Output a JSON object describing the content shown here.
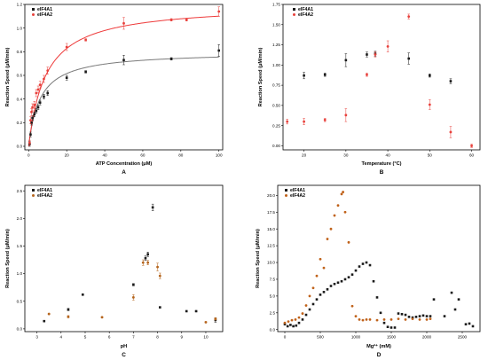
{
  "colors": {
    "A1": "#1a1a1a",
    "A2": "#e8413c",
    "curveA1": "#7a7a7a",
    "curveA2": "#ee3b3b",
    "A2_panelC": "#b5651d",
    "A2_panelD": "#c0621a"
  },
  "legend": {
    "series1": "eIF4A1",
    "series2": "eIF4A2"
  },
  "chart_data": [
    {
      "type": "scatter",
      "panel_label": "A",
      "xlabel": "ATP Concentration (μM)",
      "ylabel": "Reaction Speed (μM/min)",
      "xlim": [
        -2,
        102
      ],
      "ylim": [
        -0.03,
        1.2
      ],
      "xticks": [
        0,
        20,
        40,
        60,
        80,
        100
      ],
      "yticks": [
        0.0,
        0.2,
        0.4,
        0.6,
        0.8,
        1.0,
        1.2
      ],
      "ytick_labels": [
        "0.0",
        "0.2",
        "0.4",
        "0.6",
        "0.8",
        "1.0",
        "1.2"
      ],
      "legend_position": "top-left",
      "fits": [
        {
          "series": "eIF4A1",
          "type": "michaelis-menten",
          "vmax": 0.8,
          "km": 6
        },
        {
          "series": "eIF4A2",
          "type": "michaelis-menten",
          "vmax": 1.2,
          "km": 9
        }
      ],
      "series": [
        {
          "name": "eIF4A1",
          "color": "#1a1a1a",
          "marker": "square",
          "points": [
            [
              0.5,
              0.02
            ],
            [
              1,
              0.1
            ],
            [
              1.5,
              0.2
            ],
            [
              2,
              0.24
            ],
            [
              3,
              0.27
            ],
            [
              4,
              0.3
            ],
            [
              5,
              0.33
            ],
            [
              6,
              0.37
            ],
            [
              8,
              0.42
            ],
            [
              10,
              0.45
            ],
            [
              20,
              0.58
            ],
            [
              30,
              0.63
            ],
            [
              50,
              0.73
            ],
            [
              75,
              0.74
            ],
            [
              100,
              0.81
            ]
          ],
          "errors": [
            0.02,
            0.02,
            0.02,
            0.02,
            0.02,
            0.02,
            0.02,
            0.02,
            0.02,
            0.02,
            0.02,
            0.01,
            0.04,
            0.01,
            0.05
          ]
        },
        {
          "name": "eIF4A2",
          "color": "#e8413c",
          "marker": "circle",
          "points": [
            [
              0.5,
              0.03
            ],
            [
              1,
              0.22
            ],
            [
              1.5,
              0.29
            ],
            [
              2,
              0.33
            ],
            [
              3,
              0.35
            ],
            [
              4,
              0.45
            ],
            [
              5,
              0.48
            ],
            [
              6,
              0.52
            ],
            [
              8,
              0.57
            ],
            [
              10,
              0.64
            ],
            [
              20,
              0.84
            ],
            [
              30,
              0.9
            ],
            [
              50,
              1.04
            ],
            [
              75,
              1.07
            ],
            [
              83,
              1.07
            ],
            [
              100,
              1.14
            ]
          ],
          "errors": [
            0.02,
            0.03,
            0.03,
            0.03,
            0.03,
            0.03,
            0.03,
            0.03,
            0.03,
            0.03,
            0.03,
            0.01,
            0.05,
            0.01,
            0.01,
            0.04
          ]
        }
      ]
    },
    {
      "type": "scatter",
      "panel_label": "B",
      "xlabel": "Temperature (°C)",
      "ylabel": "Reaction Speed (μM/min)",
      "xlim": [
        15,
        62
      ],
      "ylim": [
        -0.05,
        1.75
      ],
      "xticks": [
        20,
        30,
        40,
        50,
        60
      ],
      "yticks": [
        0.0,
        0.25,
        0.5,
        0.75,
        1.0,
        1.25,
        1.5,
        1.75
      ],
      "ytick_labels": [
        "0.00",
        "0.25",
        "0.50",
        "0.75",
        "1.00",
        "1.25",
        "1.50",
        "1.75"
      ],
      "legend_position": "top-left",
      "series": [
        {
          "name": "eIF4A1",
          "color": "#1a1a1a",
          "marker": "square",
          "points": [
            [
              20,
              0.87
            ],
            [
              25,
              0.88
            ],
            [
              30,
              1.06
            ],
            [
              35,
              1.13
            ],
            [
              37,
              1.14
            ],
            [
              45,
              1.08
            ],
            [
              50,
              0.87
            ],
            [
              55,
              0.8
            ]
          ],
          "errors": [
            0.04,
            0.02,
            0.08,
            0.03,
            0.03,
            0.07,
            0.02,
            0.03
          ]
        },
        {
          "name": "eIF4A2",
          "color": "#e8413c",
          "marker": "circle",
          "points": [
            [
              16,
              0.3
            ],
            [
              20,
              0.3
            ],
            [
              25,
              0.32
            ],
            [
              30,
              0.38
            ],
            [
              35,
              0.88
            ],
            [
              37,
              1.13
            ],
            [
              40,
              1.23
            ],
            [
              45,
              1.6
            ],
            [
              50,
              0.51
            ],
            [
              55,
              0.17
            ],
            [
              60,
              0.0
            ]
          ],
          "errors": [
            0.03,
            0.04,
            0.02,
            0.08,
            0.02,
            0.03,
            0.07,
            0.03,
            0.06,
            0.07,
            0.02
          ]
        }
      ]
    },
    {
      "type": "scatter",
      "panel_label": "C",
      "xlabel": "pH",
      "ylabel": "Reaction Speed (μM/min)",
      "xlim": [
        2.5,
        10.7
      ],
      "ylim": [
        -0.05,
        2.6
      ],
      "xticks": [
        3,
        4,
        5,
        6,
        7,
        8,
        9,
        10
      ],
      "yticks": [
        0.0,
        0.5,
        1.0,
        1.5,
        2.0,
        2.5
      ],
      "ytick_labels": [
        "0.0",
        "0.5",
        "1.0",
        "1.5",
        "2.0",
        "2.5"
      ],
      "legend_position": "top-left",
      "series": [
        {
          "name": "eIF4A1",
          "color": "#1a1a1a",
          "marker": "square",
          "points": [
            [
              3.3,
              0.14
            ],
            [
              4.3,
              0.35
            ],
            [
              4.9,
              0.62
            ],
            [
              7.0,
              0.8
            ],
            [
              7.5,
              1.28
            ],
            [
              7.6,
              1.35
            ],
            [
              7.8,
              2.2
            ],
            [
              8.1,
              0.39
            ],
            [
              9.2,
              0.32
            ],
            [
              9.6,
              0.32
            ],
            [
              10.4,
              0.16
            ]
          ],
          "errors": [
            0.01,
            0.02,
            0.01,
            0.02,
            0.04,
            0.04,
            0.06,
            0.01,
            0.01,
            0.01,
            0.04
          ]
        },
        {
          "name": "eIF4A2",
          "color": "#b5651d",
          "marker": "circle",
          "points": [
            [
              3.5,
              0.27
            ],
            [
              4.3,
              0.22
            ],
            [
              5.7,
              0.21
            ],
            [
              7.0,
              0.57
            ],
            [
              7.4,
              1.2
            ],
            [
              7.6,
              1.2
            ],
            [
              8.0,
              1.12
            ],
            [
              8.1,
              0.96
            ],
            [
              10.0,
              0.12
            ],
            [
              10.4,
              0.18
            ]
          ],
          "errors": [
            0.01,
            0.02,
            0.01,
            0.05,
            0.05,
            0.04,
            0.07,
            0.05,
            0.01,
            0.02
          ]
        }
      ]
    },
    {
      "type": "scatter",
      "panel_label": "D",
      "xlabel": "Mg²⁺ (mM)",
      "ylabel": "Reaction Speed (μM/min)",
      "xlim": [
        -100,
        2750
      ],
      "ylim": [
        -0.3,
        21.5
      ],
      "xticks": [
        0,
        500,
        1000,
        1500,
        2000,
        2500
      ],
      "yticks": [
        0.0,
        2.5,
        5.0,
        7.5,
        10.0,
        12.5,
        15.0,
        17.5,
        20.0
      ],
      "ytick_labels": [
        "0.0",
        "2.5",
        "5.0",
        "7.5",
        "10.0",
        "12.5",
        "15.0",
        "17.5",
        "20.0"
      ],
      "legend_position": "top-left",
      "series": [
        {
          "name": "eIF4A1",
          "color": "#1a1a1a",
          "marker": "square",
          "points": [
            [
              0,
              0.8
            ],
            [
              40,
              0.5
            ],
            [
              80,
              0.7
            ],
            [
              120,
              0.5
            ],
            [
              160,
              0.6
            ],
            [
              200,
              1.0
            ],
            [
              250,
              1.5
            ],
            [
              300,
              2.2
            ],
            [
              350,
              3.0
            ],
            [
              400,
              3.8
            ],
            [
              450,
              4.5
            ],
            [
              500,
              5.2
            ],
            [
              550,
              5.6
            ],
            [
              600,
              6.0
            ],
            [
              650,
              6.5
            ],
            [
              700,
              6.8
            ],
            [
              750,
              7.0
            ],
            [
              800,
              7.2
            ],
            [
              850,
              7.5
            ],
            [
              900,
              7.8
            ],
            [
              950,
              8.2
            ],
            [
              1000,
              8.8
            ],
            [
              1050,
              9.4
            ],
            [
              1100,
              9.8
            ],
            [
              1150,
              10.0
            ],
            [
              1200,
              9.6
            ],
            [
              1250,
              7.2
            ],
            [
              1300,
              4.8
            ],
            [
              1350,
              2.5
            ],
            [
              1400,
              1.0
            ],
            [
              1450,
              0.4
            ],
            [
              1500,
              0.3
            ],
            [
              1550,
              0.3
            ],
            [
              1600,
              2.4
            ],
            [
              1650,
              2.3
            ],
            [
              1700,
              2.2
            ],
            [
              1750,
              1.9
            ],
            [
              1800,
              1.8
            ],
            [
              1850,
              1.9
            ],
            [
              1900,
              2.0
            ],
            [
              1950,
              2.1
            ],
            [
              2000,
              2.0
            ],
            [
              2050,
              2.0
            ],
            [
              2100,
              4.5
            ],
            [
              2250,
              2.0
            ],
            [
              2350,
              5.5
            ],
            [
              2400,
              3.0
            ],
            [
              2450,
              4.5
            ],
            [
              2550,
              0.8
            ],
            [
              2600,
              0.9
            ],
            [
              2650,
              0.5
            ]
          ]
        },
        {
          "name": "eIF4A2",
          "color": "#c0621a",
          "marker": "circle",
          "points": [
            [
              0,
              1.0
            ],
            [
              50,
              1.2
            ],
            [
              100,
              1.4
            ],
            [
              150,
              1.5
            ],
            [
              200,
              1.8
            ],
            [
              250,
              2.4
            ],
            [
              300,
              3.6
            ],
            [
              350,
              5.0
            ],
            [
              400,
              6.2
            ],
            [
              450,
              8.0
            ],
            [
              500,
              10.5
            ],
            [
              550,
              9.2
            ],
            [
              600,
              13.5
            ],
            [
              650,
              15.0
            ],
            [
              700,
              17.0
            ],
            [
              750,
              18.5
            ],
            [
              800,
              20.2
            ],
            [
              820,
              20.5
            ],
            [
              850,
              17.5
            ],
            [
              900,
              13.0
            ],
            [
              950,
              3.5
            ],
            [
              1000,
              2.0
            ],
            [
              1050,
              1.5
            ],
            [
              1100,
              1.4
            ],
            [
              1150,
              1.5
            ],
            [
              1200,
              1.5
            ],
            [
              1300,
              1.4
            ],
            [
              1400,
              1.5
            ],
            [
              1500,
              1.5
            ],
            [
              1600,
              1.6
            ],
            [
              1700,
              1.5
            ],
            [
              1800,
              1.6
            ],
            [
              1900,
              1.5
            ],
            [
              2000,
              1.5
            ],
            [
              2050,
              1.6
            ]
          ]
        }
      ]
    }
  ]
}
